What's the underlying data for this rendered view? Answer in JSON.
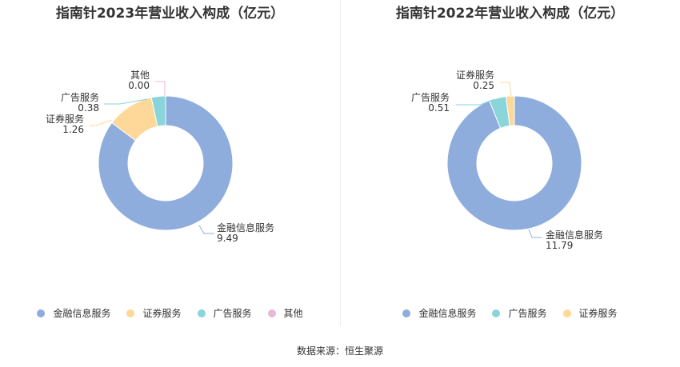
{
  "source": "数据来源：恒生聚源",
  "chart_data": [
    {
      "type": "pie",
      "title": "指南针2023年营业收入构成（亿元）",
      "categories": [
        "金融信息服务",
        "证券服务",
        "广告服务",
        "其他"
      ],
      "values": [
        9.49,
        1.26,
        0.38,
        0.0
      ],
      "value_labels": [
        "9.49",
        "1.26",
        "0.38",
        "0.00"
      ],
      "colors": [
        "#8eaddc",
        "#fdd898",
        "#8ad5d9",
        "#e8b8d8"
      ],
      "legend": [
        "金融信息服务",
        "证券服务",
        "广告服务",
        "其他"
      ],
      "legend_placement": "bottom"
    },
    {
      "type": "pie",
      "title": "指南针2022年营业收入构成（亿元）",
      "categories": [
        "金融信息服务",
        "广告服务",
        "证券服务"
      ],
      "values": [
        11.79,
        0.51,
        0.25
      ],
      "value_labels": [
        "11.79",
        "0.51",
        "0.25"
      ],
      "colors": [
        "#8eaddc",
        "#8ad5d9",
        "#fdd898"
      ],
      "legend": [
        "金融信息服务",
        "广告服务",
        "证券服务"
      ],
      "legend_placement": "bottom"
    }
  ]
}
